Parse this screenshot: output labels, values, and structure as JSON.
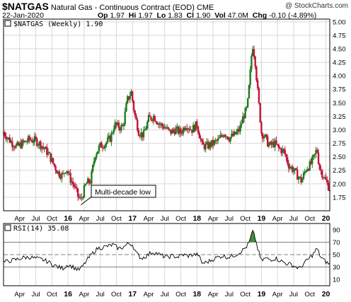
{
  "header": {
    "symbol": "$NATGAS",
    "description": "Natural Gas - Continuous Contract (EOD)",
    "exchange": "CME",
    "watermark": "@ StockCharts.com",
    "date": "22-Jan-2020",
    "quote": {
      "open_label": "Op",
      "open": "1.97",
      "high_label": "Hi",
      "high": "1.97",
      "low_label": "Lo",
      "low": "1.83",
      "close_label": "Cl",
      "close": "1.90",
      "vol_label": "Vol",
      "vol": "47.0M",
      "chg_label": "Chg",
      "chg": "-0.10 (-4.89%)"
    }
  },
  "colors": {
    "up": "#1f7a1f",
    "down": "#c0163a",
    "rsi_fill": "#3a8f3a",
    "grid": "#d8d8d8"
  },
  "chart_data": [
    {
      "type": "candlestick",
      "legend": "$NATGAS (Weekly) 1.90",
      "ylim": [
        1.5,
        5.05
      ],
      "y_ticks": [
        "1.75",
        "2.00",
        "2.25",
        "2.50",
        "2.75",
        "3.00",
        "3.25",
        "3.50",
        "3.75",
        "4.00",
        "4.25",
        "4.50",
        "4.75",
        "5.00"
      ],
      "annotation": "Multi-decade low",
      "annotation_point": {
        "x": 2016.2,
        "y": 1.61
      },
      "grid": true,
      "x_ticks": [
        {
          "label": "Apr",
          "x": 2015.25,
          "bold": false
        },
        {
          "label": "Jul",
          "x": 2015.5,
          "bold": false
        },
        {
          "label": "Oct",
          "x": 2015.75,
          "bold": false
        },
        {
          "label": "16",
          "x": 2016.0,
          "bold": true
        },
        {
          "label": "Apr",
          "x": 2016.25,
          "bold": false
        },
        {
          "label": "Jul",
          "x": 2016.5,
          "bold": false
        },
        {
          "label": "Oct",
          "x": 2016.75,
          "bold": false
        },
        {
          "label": "17",
          "x": 2017.0,
          "bold": true
        },
        {
          "label": "Apr",
          "x": 2017.25,
          "bold": false
        },
        {
          "label": "Jul",
          "x": 2017.5,
          "bold": false
        },
        {
          "label": "Oct",
          "x": 2017.75,
          "bold": false
        },
        {
          "label": "18",
          "x": 2018.0,
          "bold": true
        },
        {
          "label": "Apr",
          "x": 2018.25,
          "bold": false
        },
        {
          "label": "Jul",
          "x": 2018.5,
          "bold": false
        },
        {
          "label": "Oct",
          "x": 2018.75,
          "bold": false
        },
        {
          "label": "19",
          "x": 2019.0,
          "bold": true
        },
        {
          "label": "Apr",
          "x": 2019.25,
          "bold": false
        },
        {
          "label": "Jul",
          "x": 2019.5,
          "bold": false
        },
        {
          "label": "Oct",
          "x": 2019.75,
          "bold": false
        },
        {
          "label": "20",
          "x": 2020.0,
          "bold": true
        }
      ],
      "xlim": [
        2015.0,
        2020.06
      ],
      "closes": [
        [
          2015.0,
          2.95
        ],
        [
          2015.1,
          2.8
        ],
        [
          2015.2,
          2.68
        ],
        [
          2015.3,
          2.75
        ],
        [
          2015.4,
          2.82
        ],
        [
          2015.5,
          2.8
        ],
        [
          2015.6,
          2.7
        ],
        [
          2015.7,
          2.55
        ],
        [
          2015.78,
          2.35
        ],
        [
          2015.85,
          2.2
        ],
        [
          2015.92,
          2.15
        ],
        [
          2015.97,
          2.3
        ],
        [
          2016.03,
          2.1
        ],
        [
          2016.1,
          1.95
        ],
        [
          2016.16,
          1.75
        ],
        [
          2016.2,
          1.7
        ],
        [
          2016.28,
          2.0
        ],
        [
          2016.35,
          2.05
        ],
        [
          2016.42,
          2.55
        ],
        [
          2016.5,
          2.7
        ],
        [
          2016.58,
          2.75
        ],
        [
          2016.66,
          2.85
        ],
        [
          2016.72,
          3.1
        ],
        [
          2016.78,
          3.05
        ],
        [
          2016.85,
          3.05
        ],
        [
          2016.92,
          3.55
        ],
        [
          2016.98,
          3.7
        ],
        [
          2017.03,
          3.3
        ],
        [
          2017.1,
          2.95
        ],
        [
          2017.17,
          2.9
        ],
        [
          2017.25,
          3.2
        ],
        [
          2017.33,
          3.25
        ],
        [
          2017.42,
          3.1
        ],
        [
          2017.5,
          3.05
        ],
        [
          2017.58,
          2.95
        ],
        [
          2017.66,
          3.0
        ],
        [
          2017.75,
          2.95
        ],
        [
          2017.83,
          3.1
        ],
        [
          2017.92,
          3.0
        ],
        [
          2018.0,
          3.1
        ],
        [
          2018.08,
          2.7
        ],
        [
          2018.16,
          2.7
        ],
        [
          2018.25,
          2.75
        ],
        [
          2018.33,
          2.8
        ],
        [
          2018.42,
          2.95
        ],
        [
          2018.5,
          2.85
        ],
        [
          2018.58,
          2.9
        ],
        [
          2018.66,
          3.0
        ],
        [
          2018.72,
          3.25
        ],
        [
          2018.78,
          3.4
        ],
        [
          2018.82,
          3.95
        ],
        [
          2018.86,
          4.6
        ],
        [
          2018.9,
          4.3
        ],
        [
          2018.95,
          3.6
        ],
        [
          2019.0,
          2.95
        ],
        [
          2019.06,
          2.85
        ],
        [
          2019.12,
          2.7
        ],
        [
          2019.2,
          2.75
        ],
        [
          2019.27,
          2.65
        ],
        [
          2019.35,
          2.6
        ],
        [
          2019.42,
          2.35
        ],
        [
          2019.5,
          2.25
        ],
        [
          2019.56,
          2.15
        ],
        [
          2019.62,
          2.05
        ],
        [
          2019.7,
          2.3
        ],
        [
          2019.76,
          2.35
        ],
        [
          2019.82,
          2.5
        ],
        [
          2019.86,
          2.65
        ],
        [
          2019.9,
          2.3
        ],
        [
          2019.96,
          2.15
        ],
        [
          2020.02,
          2.0
        ],
        [
          2020.06,
          1.9
        ]
      ]
    },
    {
      "type": "line",
      "legend": "RSI(14) 35.08",
      "ylim": [
        0,
        100
      ],
      "y_ticks": [
        "10",
        "30",
        "50",
        "70",
        "90"
      ],
      "levels": [
        30,
        50,
        70
      ],
      "xlim": [
        2015.0,
        2020.06
      ],
      "points": [
        [
          2015.0,
          38
        ],
        [
          2015.1,
          40
        ],
        [
          2015.2,
          42
        ],
        [
          2015.3,
          45
        ],
        [
          2015.4,
          46
        ],
        [
          2015.5,
          44
        ],
        [
          2015.6,
          42
        ],
        [
          2015.7,
          38
        ],
        [
          2015.78,
          33
        ],
        [
          2015.85,
          30
        ],
        [
          2015.92,
          28
        ],
        [
          2016.0,
          34
        ],
        [
          2016.08,
          30
        ],
        [
          2016.16,
          25
        ],
        [
          2016.22,
          30
        ],
        [
          2016.3,
          42
        ],
        [
          2016.38,
          52
        ],
        [
          2016.46,
          60
        ],
        [
          2016.55,
          62
        ],
        [
          2016.63,
          64
        ],
        [
          2016.7,
          66
        ],
        [
          2016.78,
          60
        ],
        [
          2016.86,
          62
        ],
        [
          2016.94,
          68
        ],
        [
          2017.0,
          66
        ],
        [
          2017.06,
          52
        ],
        [
          2017.14,
          44
        ],
        [
          2017.22,
          48
        ],
        [
          2017.3,
          54
        ],
        [
          2017.38,
          52
        ],
        [
          2017.46,
          48
        ],
        [
          2017.54,
          46
        ],
        [
          2017.62,
          48
        ],
        [
          2017.7,
          46
        ],
        [
          2017.78,
          50
        ],
        [
          2017.86,
          48
        ],
        [
          2017.94,
          50
        ],
        [
          2018.02,
          50
        ],
        [
          2018.08,
          36
        ],
        [
          2018.16,
          38
        ],
        [
          2018.24,
          42
        ],
        [
          2018.32,
          46
        ],
        [
          2018.4,
          48
        ],
        [
          2018.48,
          46
        ],
        [
          2018.56,
          48
        ],
        [
          2018.64,
          52
        ],
        [
          2018.72,
          58
        ],
        [
          2018.78,
          64
        ],
        [
          2018.82,
          72
        ],
        [
          2018.86,
          88
        ],
        [
          2018.9,
          78
        ],
        [
          2018.94,
          60
        ],
        [
          2019.0,
          40
        ],
        [
          2019.06,
          44
        ],
        [
          2019.14,
          42
        ],
        [
          2019.22,
          44
        ],
        [
          2019.3,
          40
        ],
        [
          2019.38,
          36
        ],
        [
          2019.46,
          34
        ],
        [
          2019.54,
          30
        ],
        [
          2019.6,
          28
        ],
        [
          2019.66,
          36
        ],
        [
          2019.74,
          44
        ],
        [
          2019.8,
          50
        ],
        [
          2019.86,
          60
        ],
        [
          2019.92,
          46
        ],
        [
          2019.98,
          40
        ],
        [
          2020.03,
          36
        ],
        [
          2020.06,
          35
        ]
      ]
    }
  ]
}
